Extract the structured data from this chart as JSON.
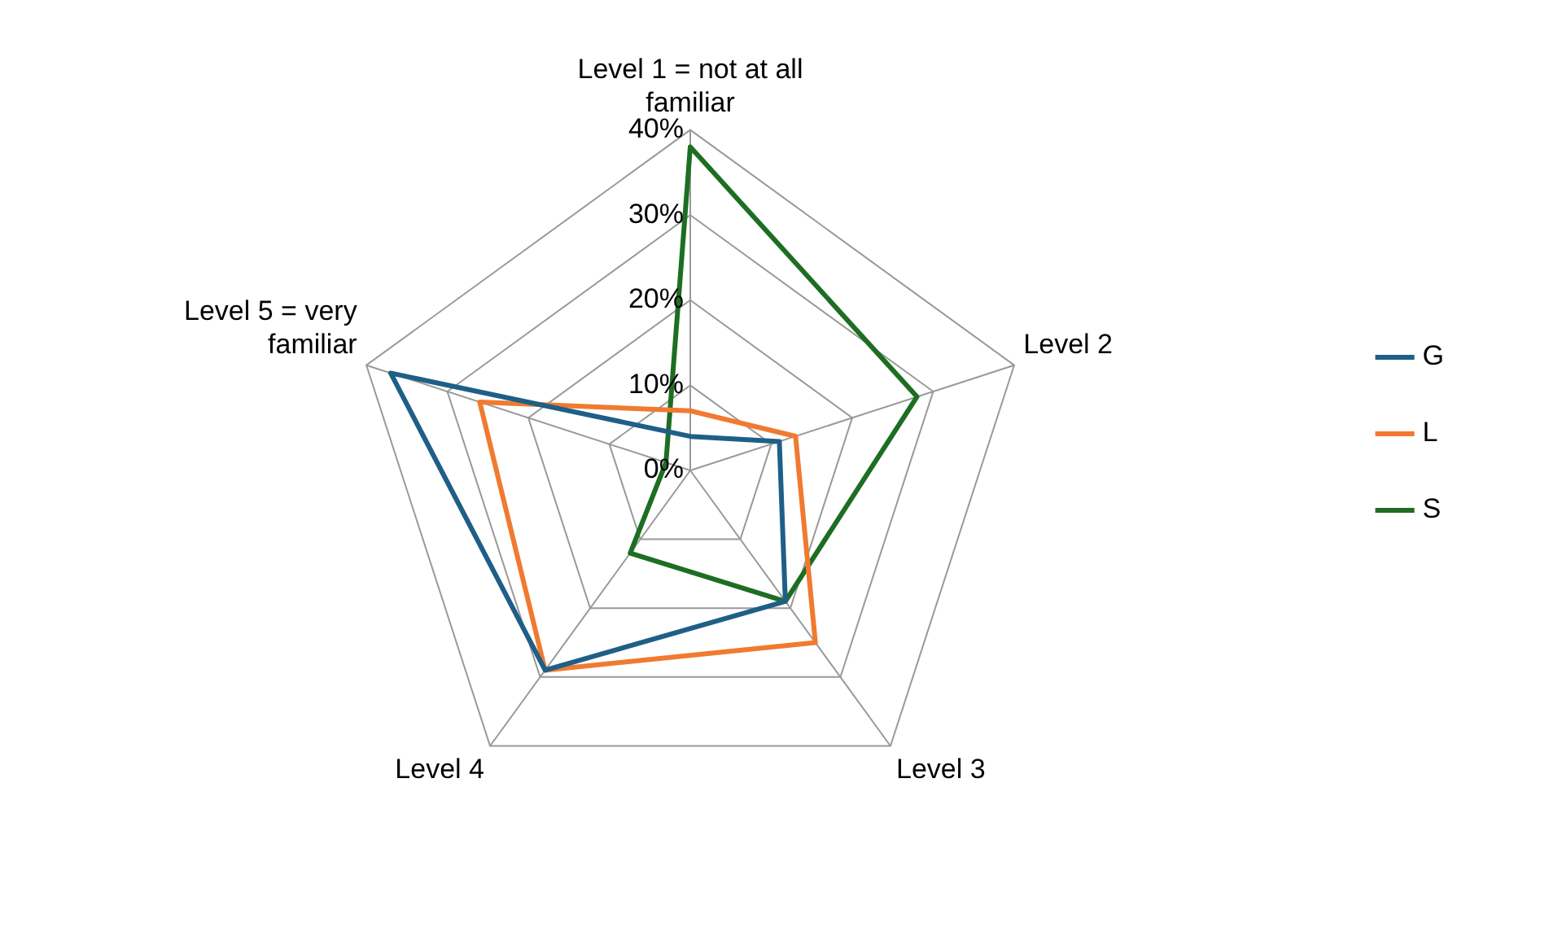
{
  "chart_data": {
    "type": "radar",
    "categories": [
      "Level 1 = not at all familiar",
      "Level 2",
      "Level 3",
      "Level 4",
      "Level 5 = very familiar"
    ],
    "series": [
      {
        "name": "G",
        "color": "#1f5f87",
        "values": [
          4,
          11,
          19,
          29,
          37
        ]
      },
      {
        "name": "L",
        "color": "#f07a30",
        "values": [
          7,
          13,
          25,
          29,
          26
        ]
      },
      {
        "name": "S",
        "color": "#1d6e23",
        "values": [
          38,
          28,
          19,
          12,
          3
        ]
      }
    ],
    "ylim": [
      0,
      40
    ],
    "yticks": [
      {
        "value": 0,
        "label": "0%"
      },
      {
        "value": 10,
        "label": "10%"
      },
      {
        "value": 20,
        "label": "20%"
      },
      {
        "value": 30,
        "label": "30%"
      },
      {
        "value": 40,
        "label": "40%"
      }
    ],
    "grid": true,
    "legend": "right",
    "marker": "none",
    "line_style": "solid"
  }
}
